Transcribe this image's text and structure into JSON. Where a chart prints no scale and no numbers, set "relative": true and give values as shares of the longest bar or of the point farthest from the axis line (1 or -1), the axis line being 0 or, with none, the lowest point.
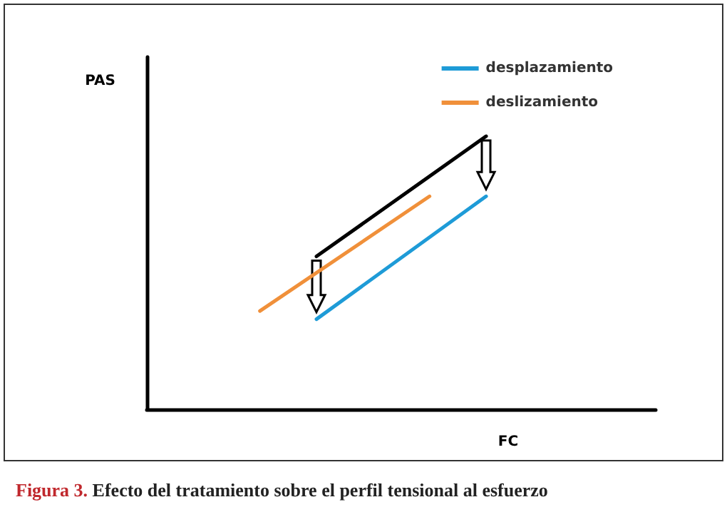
{
  "chart_data": {
    "type": "line",
    "title": "Figura 3. Efecto del tratamiento sobre el perfil tensional al esfuerzo",
    "xlabel": "FC",
    "ylabel": "PAS",
    "relative": true,
    "categories": [
      null,
      null,
      null,
      null,
      null,
      null,
      null,
      null,
      null,
      null
    ],
    "series": [
      {
        "color": "#000000",
        "values": [
          null,
          null,
          null,
          0.56,
          null,
          null,
          1,
          null,
          null,
          null
        ]
      },
      {
        "name": "desplazamiento",
        "color": "#1e9bd7",
        "values": [
          null,
          null,
          null,
          0.33,
          null,
          null,
          0.78,
          null,
          null,
          null
        ]
      },
      {
        "name": "deslizamiento",
        "color": "#f0903a",
        "values": [
          null,
          null,
          0.36,
          null,
          null,
          0.78,
          null,
          null,
          null,
          null
        ]
      }
    ],
    "legend": "top right",
    "grid": false
  }
}
